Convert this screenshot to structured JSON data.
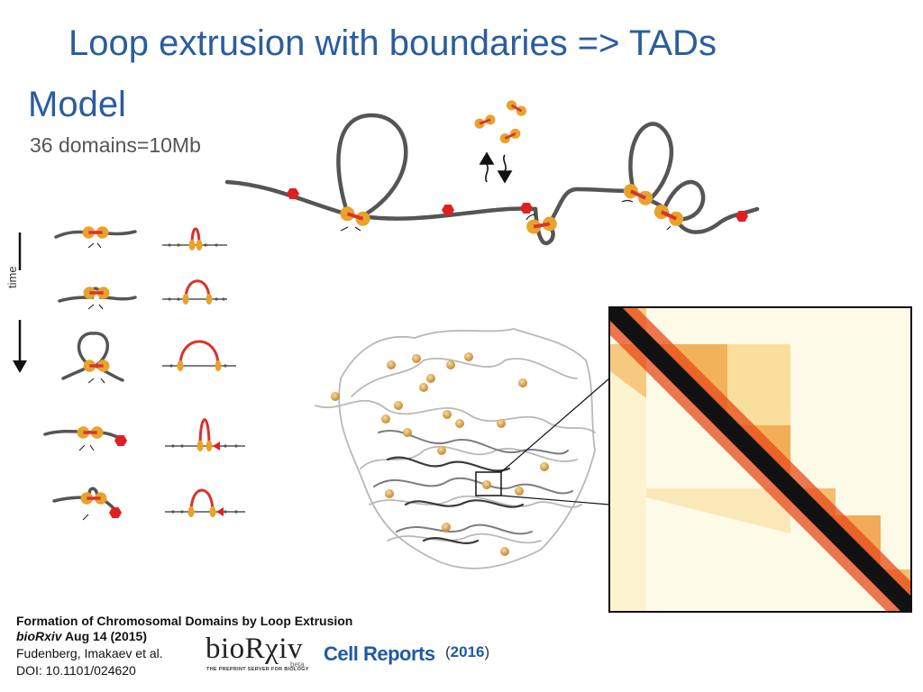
{
  "slide": {
    "title": "Loop extrusion with boundaries => TADs",
    "subtitle": "Model",
    "domains_note": "36 domains=10Mb",
    "time_axis_label": "time"
  },
  "citation": {
    "paper_title": "Formation of Chromosomal Domains by Loop Extrusion",
    "preprint_journal": "bioRxiv",
    "preprint_date": " Aug 14 (2015)",
    "authors": "Fudenberg, Imakaev et al.",
    "doi": "DOI: 10.1101/024620",
    "biorxiv_logo": "bioRχiv",
    "biorxiv_beta": "beta",
    "biorxiv_tagline": "THE PREPRINT SERVER FOR BIOLOGY",
    "journal": "Cell Reports",
    "year_open": "(",
    "year": "2016",
    "year_close": ")"
  },
  "colors": {
    "title": "#2a5d9f",
    "chromatin": "#555555",
    "extruder_yellow": "#e8a32a",
    "extruder_red": "#d9332b",
    "boundary_red": "#e02020",
    "heatmap_dark": "#111111",
    "heatmap_red": "#d81e10",
    "heatmap_light": "#fdfbe8"
  },
  "icons": [
    "boundary-hexagon-icon",
    "extruder-icon",
    "time-arrow-icon"
  ]
}
